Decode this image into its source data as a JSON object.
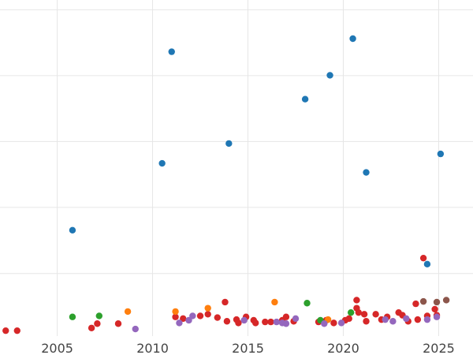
{
  "chart_data": {
    "type": "scatter",
    "title": "",
    "xlabel": "",
    "ylabel": "",
    "xlim": [
      2002,
      2026.8
    ],
    "ylim": [
      0,
      1
    ],
    "grid": true,
    "legend": "none",
    "x_ticks": [
      {
        "value": 2005,
        "label": "2005"
      },
      {
        "value": 2010,
        "label": "2010"
      },
      {
        "value": 2015,
        "label": "2015"
      },
      {
        "value": 2020,
        "label": "2020"
      },
      {
        "value": 2025,
        "label": "2025"
      }
    ],
    "y_gridlines": [
      0.186,
      0.383,
      0.579,
      0.775,
      0.971
    ],
    "series": [
      {
        "color": "#1f77b4",
        "points": [
          {
            "x": 2005.8,
            "y": 0.315
          },
          {
            "x": 2010.5,
            "y": 0.514
          },
          {
            "x": 2011.0,
            "y": 0.846
          },
          {
            "x": 2014.0,
            "y": 0.573
          },
          {
            "x": 2018.0,
            "y": 0.705
          },
          {
            "x": 2019.3,
            "y": 0.776
          },
          {
            "x": 2020.5,
            "y": 0.885
          },
          {
            "x": 2021.2,
            "y": 0.487
          },
          {
            "x": 2024.4,
            "y": 0.214
          },
          {
            "x": 2025.1,
            "y": 0.542
          }
        ]
      },
      {
        "color": "#d62728",
        "points": [
          {
            "x": 2002.3,
            "y": 0.016
          },
          {
            "x": 2002.9,
            "y": 0.016
          },
          {
            "x": 2006.8,
            "y": 0.024
          },
          {
            "x": 2007.1,
            "y": 0.037
          },
          {
            "x": 2008.2,
            "y": 0.037
          },
          {
            "x": 2011.2,
            "y": 0.057
          },
          {
            "x": 2011.6,
            "y": 0.052
          },
          {
            "x": 2012.5,
            "y": 0.06
          },
          {
            "x": 2012.9,
            "y": 0.065
          },
          {
            "x": 2013.4,
            "y": 0.055
          },
          {
            "x": 2013.8,
            "y": 0.101
          },
          {
            "x": 2013.9,
            "y": 0.044
          },
          {
            "x": 2014.4,
            "y": 0.049
          },
          {
            "x": 2014.5,
            "y": 0.039
          },
          {
            "x": 2014.9,
            "y": 0.057
          },
          {
            "x": 2015.3,
            "y": 0.047
          },
          {
            "x": 2015.4,
            "y": 0.039
          },
          {
            "x": 2015.9,
            "y": 0.042
          },
          {
            "x": 2016.2,
            "y": 0.042
          },
          {
            "x": 2016.8,
            "y": 0.047
          },
          {
            "x": 2017.0,
            "y": 0.057
          },
          {
            "x": 2017.4,
            "y": 0.044
          },
          {
            "x": 2018.7,
            "y": 0.042
          },
          {
            "x": 2019.1,
            "y": 0.047
          },
          {
            "x": 2019.5,
            "y": 0.039
          },
          {
            "x": 2020.1,
            "y": 0.047
          },
          {
            "x": 2020.3,
            "y": 0.052
          },
          {
            "x": 2020.7,
            "y": 0.107
          },
          {
            "x": 2020.7,
            "y": 0.083
          },
          {
            "x": 2020.8,
            "y": 0.07
          },
          {
            "x": 2021.1,
            "y": 0.065
          },
          {
            "x": 2021.2,
            "y": 0.044
          },
          {
            "x": 2021.7,
            "y": 0.065
          },
          {
            "x": 2022.0,
            "y": 0.049
          },
          {
            "x": 2022.3,
            "y": 0.057
          },
          {
            "x": 2022.9,
            "y": 0.07
          },
          {
            "x": 2023.1,
            "y": 0.062
          },
          {
            "x": 2023.4,
            "y": 0.044
          },
          {
            "x": 2023.8,
            "y": 0.096
          },
          {
            "x": 2023.9,
            "y": 0.049
          },
          {
            "x": 2024.2,
            "y": 0.232
          },
          {
            "x": 2024.4,
            "y": 0.06
          },
          {
            "x": 2024.8,
            "y": 0.08
          },
          {
            "x": 2024.9,
            "y": 0.062
          }
        ]
      },
      {
        "color": "#2ca02c",
        "points": [
          {
            "x": 2005.8,
            "y": 0.057
          },
          {
            "x": 2007.2,
            "y": 0.06
          },
          {
            "x": 2018.1,
            "y": 0.098
          },
          {
            "x": 2018.8,
            "y": 0.047
          },
          {
            "x": 2020.4,
            "y": 0.07
          }
        ]
      },
      {
        "color": "#ff7f0e",
        "points": [
          {
            "x": 2008.7,
            "y": 0.073
          },
          {
            "x": 2011.2,
            "y": 0.073
          },
          {
            "x": 2012.9,
            "y": 0.083
          },
          {
            "x": 2016.4,
            "y": 0.101
          },
          {
            "x": 2019.2,
            "y": 0.049
          }
        ]
      },
      {
        "color": "#9467bd",
        "points": [
          {
            "x": 2009.1,
            "y": 0.021
          },
          {
            "x": 2011.4,
            "y": 0.039
          },
          {
            "x": 2011.9,
            "y": 0.047
          },
          {
            "x": 2012.1,
            "y": 0.06
          },
          {
            "x": 2014.8,
            "y": 0.047
          },
          {
            "x": 2016.5,
            "y": 0.042
          },
          {
            "x": 2016.8,
            "y": 0.039
          },
          {
            "x": 2017.0,
            "y": 0.037
          },
          {
            "x": 2017.5,
            "y": 0.052
          },
          {
            "x": 2019.0,
            "y": 0.037
          },
          {
            "x": 2019.9,
            "y": 0.039
          },
          {
            "x": 2022.2,
            "y": 0.049
          },
          {
            "x": 2022.6,
            "y": 0.044
          },
          {
            "x": 2023.3,
            "y": 0.052
          },
          {
            "x": 2024.4,
            "y": 0.049
          },
          {
            "x": 2024.9,
            "y": 0.057
          }
        ]
      },
      {
        "color": "#8c564b",
        "points": [
          {
            "x": 2024.2,
            "y": 0.103
          },
          {
            "x": 2024.9,
            "y": 0.101
          },
          {
            "x": 2025.4,
            "y": 0.107
          }
        ]
      }
    ]
  }
}
